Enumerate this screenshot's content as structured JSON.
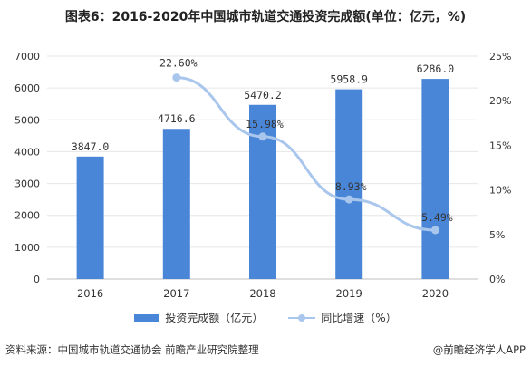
{
  "title": "图表6：2016-2020年中国城市轨道交通投资完成额(单位：亿元，%)",
  "footer": {
    "source": "资料来源：中国城市轨道交通协会 前瞻产业研究院整理",
    "brand": "@前瞻经济学人APP"
  },
  "colors": {
    "bar": "#4a86d8",
    "line": "#a9c6ec",
    "grid": "#e6e6e6",
    "axis_text": "#333333"
  },
  "chart_data": {
    "type": "bar",
    "categories": [
      "2016",
      "2017",
      "2018",
      "2019",
      "2020"
    ],
    "series": [
      {
        "name": "投资完成额（亿元）",
        "type": "bar",
        "axis": "left",
        "values": [
          3847.0,
          4716.6,
          5470.2,
          5958.9,
          6286.0
        ],
        "labels": [
          "3847.0",
          "4716.6",
          "5470.2",
          "5958.9",
          "6286.0"
        ]
      },
      {
        "name": "同比增速（%）",
        "type": "line",
        "axis": "right",
        "x": [
          "2017",
          "2018",
          "2019",
          "2020"
        ],
        "values": [
          22.6,
          15.98,
          8.93,
          5.49
        ],
        "labels": [
          "22.60%",
          "15.98%",
          "8.93%",
          "5.49%"
        ]
      }
    ],
    "y_left": {
      "min": 0,
      "max": 7000,
      "step": 1000,
      "ticks": [
        "0",
        "1000",
        "2000",
        "3000",
        "4000",
        "5000",
        "6000",
        "7000"
      ]
    },
    "y_right": {
      "min": 0,
      "max": 25,
      "step": 5,
      "ticks": [
        "0%",
        "5%",
        "10%",
        "15%",
        "20%",
        "25%"
      ]
    },
    "grid": true,
    "legend_position": "bottom"
  }
}
